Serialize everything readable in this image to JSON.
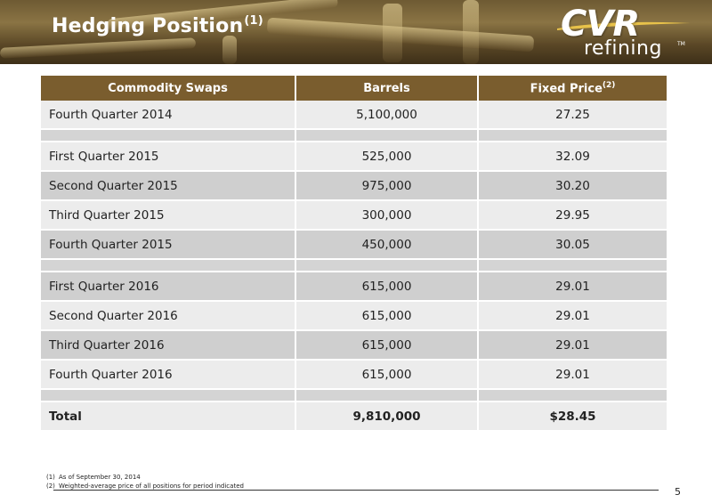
{
  "header": {
    "title": "Hedging Position",
    "title_sup": "(1)",
    "logo_top": "CVR",
    "logo_bottom": "refining",
    "logo_tm": "TM"
  },
  "table": {
    "columns": [
      "Commodity Swaps",
      "Barrels",
      "Fixed Price"
    ],
    "fixed_price_sup": "(2)",
    "rows": [
      {
        "period": "Fourth Quarter 2014",
        "barrels": "5,100,000",
        "price": "27.25"
      },
      {
        "period": "First Quarter 2015",
        "barrels": "525,000",
        "price": "32.09"
      },
      {
        "period": "Second Quarter 2015",
        "barrels": "975,000",
        "price": "30.20"
      },
      {
        "period": "Third Quarter 2015",
        "barrels": "300,000",
        "price": "29.95"
      },
      {
        "period": "Fourth Quarter 2015",
        "barrels": "450,000",
        "price": "30.05"
      },
      {
        "period": "First Quarter 2016",
        "barrels": "615,000",
        "price": "29.01"
      },
      {
        "period": "Second Quarter 2016",
        "barrels": "615,000",
        "price": "29.01"
      },
      {
        "period": "Third Quarter 2016",
        "barrels": "615,000",
        "price": "29.01"
      },
      {
        "period": "Fourth Quarter 2016",
        "barrels": "615,000",
        "price": "29.01"
      }
    ],
    "total": {
      "label": "Total",
      "barrels": "9,810,000",
      "price": "$28.45"
    }
  },
  "footnotes": [
    {
      "num": "(1)",
      "text": "As of September 30, 2014"
    },
    {
      "num": "(2)",
      "text": "Weighted-average price of all positions for period indicated"
    }
  ],
  "page_number": "5",
  "colors": {
    "header_bg": "#7a5d2e",
    "row_light": "#ececec",
    "row_dark": "#cfcfcf",
    "banner_gold": "#8a7444"
  }
}
